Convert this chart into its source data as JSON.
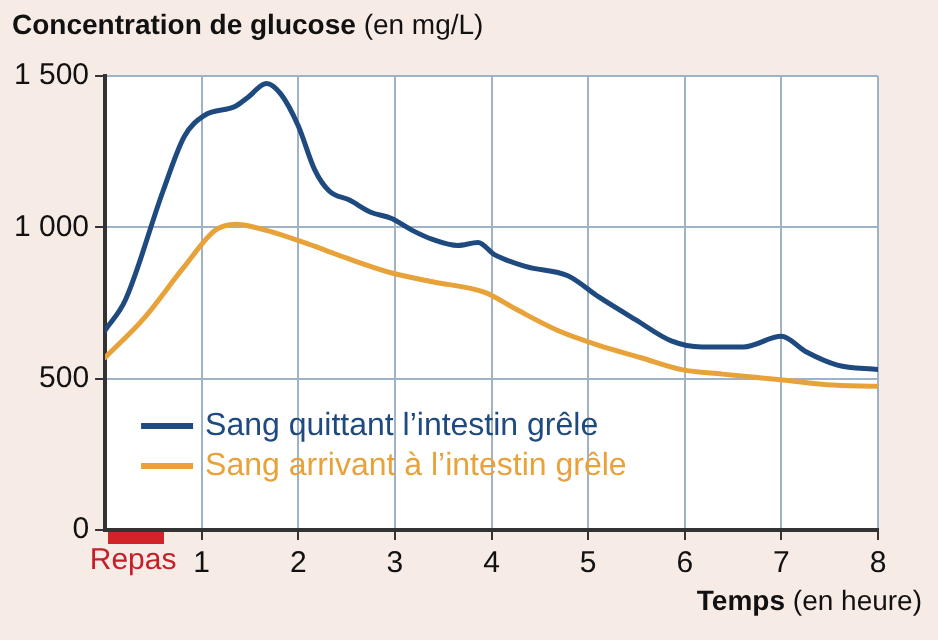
{
  "chart_data": {
    "type": "line",
    "ylabel": "Concentration de glucose (en mg/L)",
    "xlabel": "Temps (en heure)",
    "series": [
      {
        "name": "Sang quittant l’intestin grêle",
        "color": "#1f4a80",
        "x": [
          0,
          0.21,
          0.6,
          0.82,
          1.03,
          1.35,
          1.48,
          1.67,
          1.82,
          2.0,
          2.17,
          2.32,
          2.53,
          2.75,
          2.96,
          3.18,
          3.39,
          3.65,
          3.86,
          4.03,
          4.36,
          4.79,
          5.11,
          5.49,
          5.86,
          6.18,
          6.61,
          7.0,
          7.25,
          7.58,
          8
        ],
        "values": [
          660,
          760,
          1120,
          1300,
          1370,
          1400,
          1430,
          1475,
          1440,
          1335,
          1190,
          1120,
          1090,
          1050,
          1030,
          990,
          960,
          940,
          950,
          910,
          870,
          840,
          770,
          695,
          625,
          605,
          605,
          640,
          590,
          545,
          530
        ]
      },
      {
        "name": "Sang arrivant à l’intestin grêle",
        "color": "#e8a23a",
        "x": [
          0,
          0.39,
          0.82,
          1.14,
          1.35,
          1.67,
          2.1,
          2.53,
          2.96,
          3.39,
          3.93,
          4.25,
          4.68,
          5.11,
          5.54,
          5.97,
          6.39,
          7.04,
          7.47,
          8
        ],
        "values": [
          570,
          695,
          870,
          990,
          1010,
          990,
          945,
          895,
          850,
          820,
          785,
          730,
          660,
          610,
          570,
          530,
          515,
          495,
          480,
          475
        ]
      }
    ],
    "xlim": [
      0,
      8
    ],
    "xticks": [
      1,
      2,
      3,
      4,
      5,
      6,
      7,
      8
    ],
    "ylim": [
      0,
      1500
    ],
    "yticks": [
      0,
      {
        "value": 500,
        "label": "500"
      },
      {
        "value": 1000,
        "label": "1 000"
      },
      {
        "value": 1500,
        "label": "1 500"
      }
    ],
    "annotations": [
      "Repas"
    ],
    "grid": true,
    "legend": "bottom left",
    "marker": "none",
    "line_style": "solid"
  }
}
